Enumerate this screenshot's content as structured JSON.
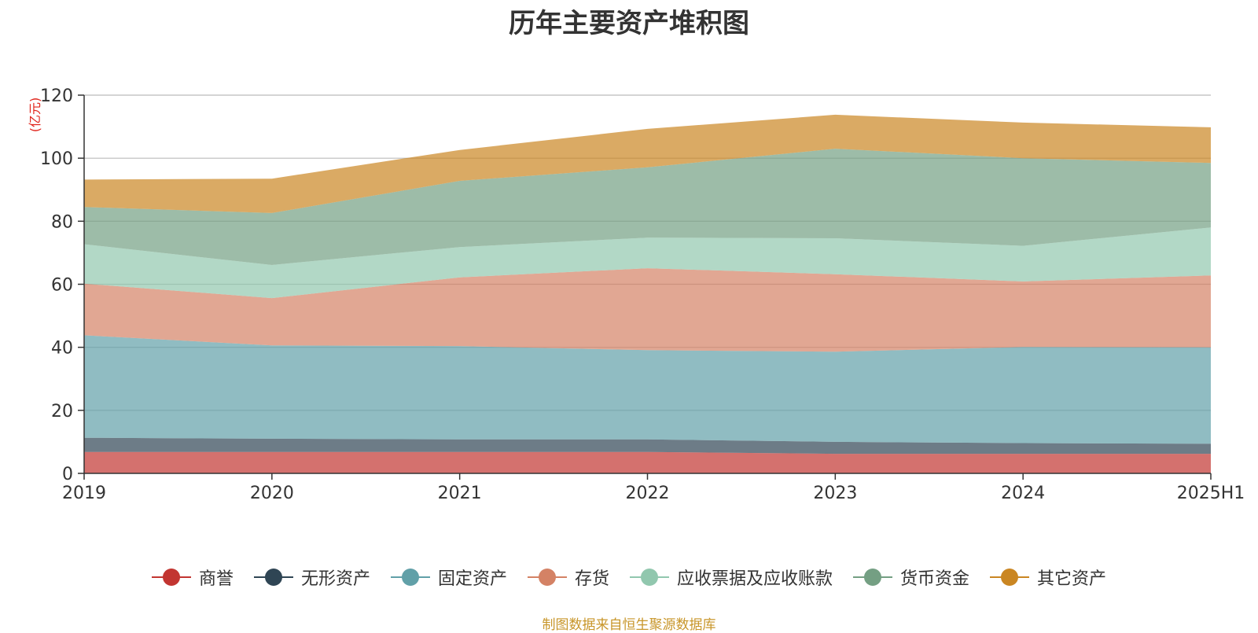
{
  "title": "历年主要资产堆积图",
  "source_note": "制图数据来自恒生聚源数据库",
  "chart_data": {
    "type": "area",
    "stacked": true,
    "title": "历年主要资产堆积图",
    "ylabel": "(亿元)",
    "xlabel": "",
    "ylim": [
      0,
      120
    ],
    "yticks": [
      0,
      20,
      40,
      60,
      80,
      100,
      120
    ],
    "grid": true,
    "legend_position": "bottom",
    "categories": [
      "2019",
      "2020",
      "2021",
      "2022",
      "2023",
      "2024",
      "2025H1"
    ],
    "series": [
      {
        "name": "商誉",
        "color": "#c23531",
        "values": [
          6.8,
          6.8,
          6.8,
          6.8,
          6.2,
          6.2,
          6.2
        ]
      },
      {
        "name": "无形资产",
        "color": "#2f4554",
        "values": [
          4.5,
          4.2,
          4.0,
          4.0,
          3.8,
          3.4,
          3.2
        ]
      },
      {
        "name": "固定资产",
        "color": "#61a0a8",
        "values": [
          32.5,
          29.6,
          29.6,
          28.3,
          28.6,
          30.5,
          30.6
        ]
      },
      {
        "name": "存货",
        "color": "#d48265",
        "values": [
          16.4,
          15.0,
          21.8,
          26.0,
          24.6,
          20.8,
          22.8
        ]
      },
      {
        "name": "应收票据及应收账款",
        "color": "#91c7ae",
        "values": [
          12.5,
          10.5,
          9.6,
          9.7,
          11.4,
          11.3,
          15.2
        ]
      },
      {
        "name": "货币资金",
        "color": "#749f83",
        "values": [
          11.8,
          16.5,
          21.0,
          22.3,
          28.4,
          27.8,
          20.5
        ]
      },
      {
        "name": "其它资产",
        "color": "#ca8622",
        "values": [
          8.7,
          10.9,
          9.8,
          12.2,
          10.8,
          11.3,
          11.3
        ]
      }
    ]
  }
}
